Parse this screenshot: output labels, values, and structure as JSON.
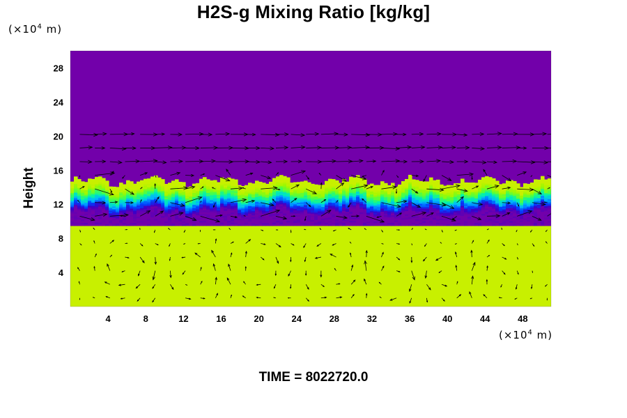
{
  "title": "H2S-g Mixing Ratio [kg/kg]",
  "time_label": "TIME = 8022720.0",
  "colors": {
    "upper": "#7200aa",
    "lower": "#c8f000",
    "transition": [
      "#7200aa",
      "#3a00c8",
      "#0040ff",
      "#00b4ff",
      "#00f0b0",
      "#50ff40",
      "#a0f800",
      "#c8f000"
    ],
    "arrow": "#000000"
  },
  "chart_data": {
    "type": "heatmap",
    "title": "H2S-g Mixing Ratio [kg/kg]",
    "xlabel": "",
    "ylabel": "Height",
    "x_unit": {
      "prefix": "(×10",
      "exp": "4",
      "suffix": " m)"
    },
    "y_unit": {
      "prefix": "(×10",
      "exp": "4",
      "suffix": " m)"
    },
    "xlim": [
      0,
      51
    ],
    "ylim": [
      0,
      30
    ],
    "xticks": [
      4,
      8,
      12,
      16,
      20,
      24,
      28,
      32,
      36,
      40,
      44,
      48
    ],
    "yticks": [
      4,
      8,
      12,
      16,
      20,
      24,
      28
    ],
    "grid": false,
    "overlay": "velocity vectors",
    "interface_height": 12.5,
    "lower_layer_top": 9.5,
    "time": 8022720.0
  }
}
